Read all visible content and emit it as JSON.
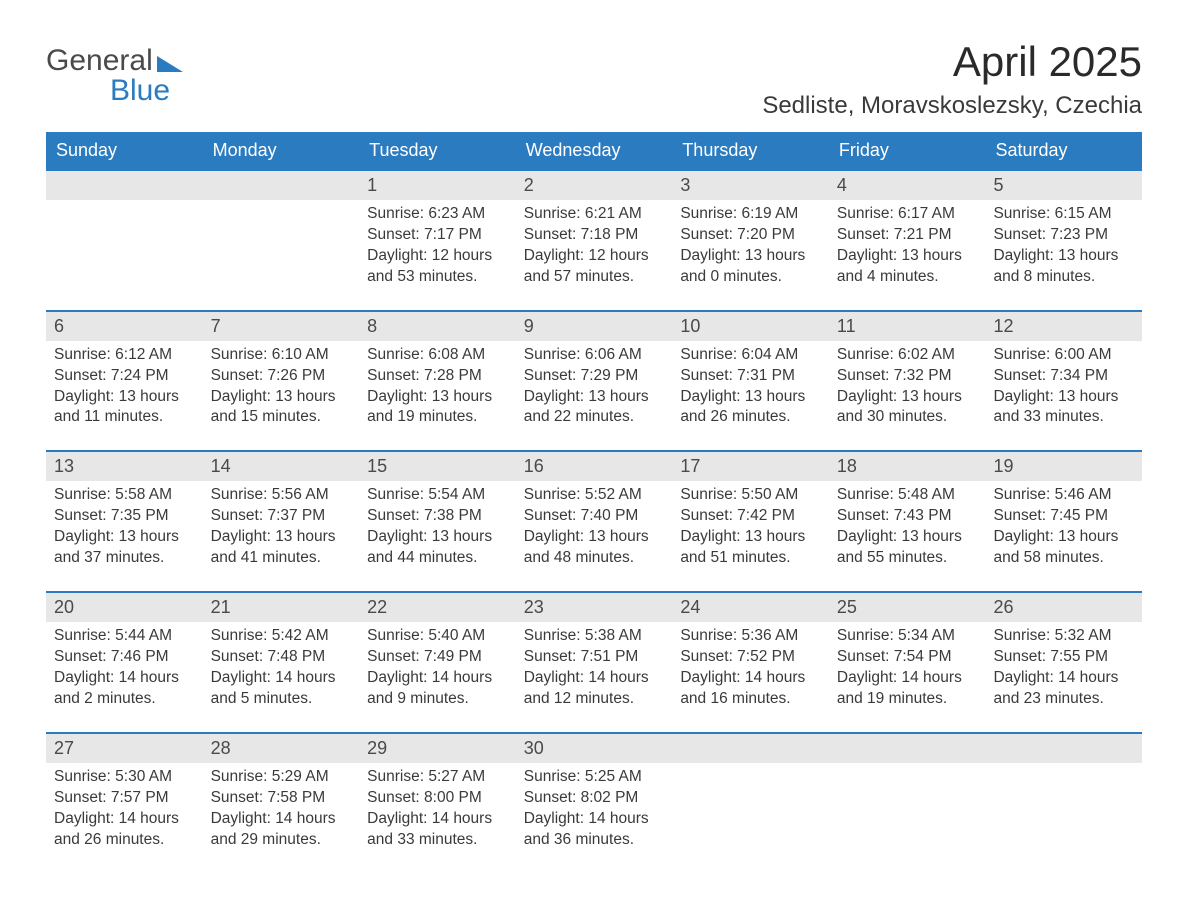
{
  "logo": {
    "top": "General",
    "bottom": "Blue"
  },
  "title": "April 2025",
  "location": "Sedliste, Moravskoslezsky, Czechia",
  "colors": {
    "header_bg": "#2a7bc0",
    "header_text": "#ffffff",
    "daynum_bg": "#e7e7e7",
    "week_border": "#2a7bc0",
    "text": "#3a3a3a",
    "logo_gray": "#4a4a4a",
    "logo_blue": "#2a7bc0",
    "page_bg": "#ffffff"
  },
  "fonts": {
    "title_size_pt": 32,
    "location_size_pt": 18,
    "dayheader_size_pt": 14,
    "daynum_size_pt": 14,
    "info_size_pt": 12
  },
  "day_headers": [
    "Sunday",
    "Monday",
    "Tuesday",
    "Wednesday",
    "Thursday",
    "Friday",
    "Saturday"
  ],
  "labels": {
    "sunrise": "Sunrise:",
    "sunset": "Sunset:",
    "daylight": "Daylight:"
  },
  "weeks": [
    [
      {
        "day": null
      },
      {
        "day": null
      },
      {
        "day": 1,
        "sunrise": "6:23 AM",
        "sunset": "7:17 PM",
        "daylight": "12 hours and 53 minutes."
      },
      {
        "day": 2,
        "sunrise": "6:21 AM",
        "sunset": "7:18 PM",
        "daylight": "12 hours and 57 minutes."
      },
      {
        "day": 3,
        "sunrise": "6:19 AM",
        "sunset": "7:20 PM",
        "daylight": "13 hours and 0 minutes."
      },
      {
        "day": 4,
        "sunrise": "6:17 AM",
        "sunset": "7:21 PM",
        "daylight": "13 hours and 4 minutes."
      },
      {
        "day": 5,
        "sunrise": "6:15 AM",
        "sunset": "7:23 PM",
        "daylight": "13 hours and 8 minutes."
      }
    ],
    [
      {
        "day": 6,
        "sunrise": "6:12 AM",
        "sunset": "7:24 PM",
        "daylight": "13 hours and 11 minutes."
      },
      {
        "day": 7,
        "sunrise": "6:10 AM",
        "sunset": "7:26 PM",
        "daylight": "13 hours and 15 minutes."
      },
      {
        "day": 8,
        "sunrise": "6:08 AM",
        "sunset": "7:28 PM",
        "daylight": "13 hours and 19 minutes."
      },
      {
        "day": 9,
        "sunrise": "6:06 AM",
        "sunset": "7:29 PM",
        "daylight": "13 hours and 22 minutes."
      },
      {
        "day": 10,
        "sunrise": "6:04 AM",
        "sunset": "7:31 PM",
        "daylight": "13 hours and 26 minutes."
      },
      {
        "day": 11,
        "sunrise": "6:02 AM",
        "sunset": "7:32 PM",
        "daylight": "13 hours and 30 minutes."
      },
      {
        "day": 12,
        "sunrise": "6:00 AM",
        "sunset": "7:34 PM",
        "daylight": "13 hours and 33 minutes."
      }
    ],
    [
      {
        "day": 13,
        "sunrise": "5:58 AM",
        "sunset": "7:35 PM",
        "daylight": "13 hours and 37 minutes."
      },
      {
        "day": 14,
        "sunrise": "5:56 AM",
        "sunset": "7:37 PM",
        "daylight": "13 hours and 41 minutes."
      },
      {
        "day": 15,
        "sunrise": "5:54 AM",
        "sunset": "7:38 PM",
        "daylight": "13 hours and 44 minutes."
      },
      {
        "day": 16,
        "sunrise": "5:52 AM",
        "sunset": "7:40 PM",
        "daylight": "13 hours and 48 minutes."
      },
      {
        "day": 17,
        "sunrise": "5:50 AM",
        "sunset": "7:42 PM",
        "daylight": "13 hours and 51 minutes."
      },
      {
        "day": 18,
        "sunrise": "5:48 AM",
        "sunset": "7:43 PM",
        "daylight": "13 hours and 55 minutes."
      },
      {
        "day": 19,
        "sunrise": "5:46 AM",
        "sunset": "7:45 PM",
        "daylight": "13 hours and 58 minutes."
      }
    ],
    [
      {
        "day": 20,
        "sunrise": "5:44 AM",
        "sunset": "7:46 PM",
        "daylight": "14 hours and 2 minutes."
      },
      {
        "day": 21,
        "sunrise": "5:42 AM",
        "sunset": "7:48 PM",
        "daylight": "14 hours and 5 minutes."
      },
      {
        "day": 22,
        "sunrise": "5:40 AM",
        "sunset": "7:49 PM",
        "daylight": "14 hours and 9 minutes."
      },
      {
        "day": 23,
        "sunrise": "5:38 AM",
        "sunset": "7:51 PM",
        "daylight": "14 hours and 12 minutes."
      },
      {
        "day": 24,
        "sunrise": "5:36 AM",
        "sunset": "7:52 PM",
        "daylight": "14 hours and 16 minutes."
      },
      {
        "day": 25,
        "sunrise": "5:34 AM",
        "sunset": "7:54 PM",
        "daylight": "14 hours and 19 minutes."
      },
      {
        "day": 26,
        "sunrise": "5:32 AM",
        "sunset": "7:55 PM",
        "daylight": "14 hours and 23 minutes."
      }
    ],
    [
      {
        "day": 27,
        "sunrise": "5:30 AM",
        "sunset": "7:57 PM",
        "daylight": "14 hours and 26 minutes."
      },
      {
        "day": 28,
        "sunrise": "5:29 AM",
        "sunset": "7:58 PM",
        "daylight": "14 hours and 29 minutes."
      },
      {
        "day": 29,
        "sunrise": "5:27 AM",
        "sunset": "8:00 PM",
        "daylight": "14 hours and 33 minutes."
      },
      {
        "day": 30,
        "sunrise": "5:25 AM",
        "sunset": "8:02 PM",
        "daylight": "14 hours and 36 minutes."
      },
      {
        "day": null
      },
      {
        "day": null
      },
      {
        "day": null
      }
    ]
  ]
}
